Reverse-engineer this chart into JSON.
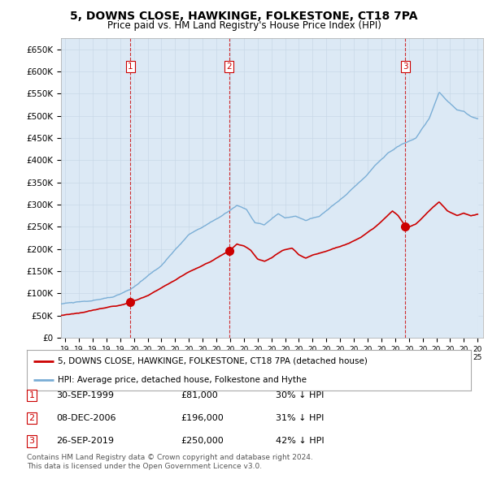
{
  "title": "5, DOWNS CLOSE, HAWKINGE, FOLKESTONE, CT18 7PA",
  "subtitle": "Price paid vs. HM Land Registry's House Price Index (HPI)",
  "ylim": [
    0,
    675000
  ],
  "xlim_start": 1994.7,
  "xlim_end": 2025.4,
  "sale_color": "#cc0000",
  "hpi_color": "#7aaed6",
  "hpi_fill_color": "#dce9f5",
  "sale_label": "5, DOWNS CLOSE, HAWKINGE, FOLKESTONE, CT18 7PA (detached house)",
  "hpi_label": "HPI: Average price, detached house, Folkestone and Hythe",
  "transactions": [
    {
      "num": 1,
      "date_label": "30-SEP-1999",
      "price_label": "£81,000",
      "pct_label": "30% ↓ HPI",
      "year": 1999.75,
      "price": 81000
    },
    {
      "num": 2,
      "date_label": "08-DEC-2006",
      "price_label": "£196,000",
      "pct_label": "31% ↓ HPI",
      "year": 2006.92,
      "price": 196000
    },
    {
      "num": 3,
      "date_label": "26-SEP-2019",
      "price_label": "£250,000",
      "pct_label": "42% ↓ HPI",
      "year": 2019.75,
      "price": 250000
    }
  ],
  "footnote1": "Contains HM Land Registry data © Crown copyright and database right 2024.",
  "footnote2": "This data is licensed under the Open Government Licence v3.0.",
  "background_color": "#ffffff",
  "grid_color": "#c8d8e8",
  "vline_color": "#cc0000"
}
